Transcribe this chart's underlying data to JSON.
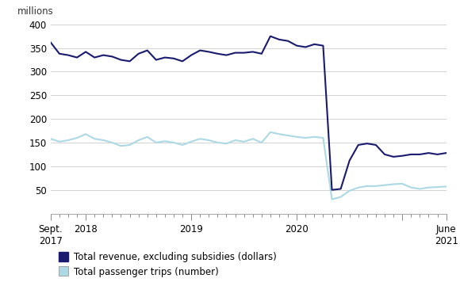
{
  "ylabel_text": "millions",
  "series": {
    "revenue": {
      "label": "Total revenue, excluding subsidies (dollars)",
      "color": "#1a1a6e",
      "linewidth": 1.5,
      "values": [
        362,
        338,
        335,
        330,
        342,
        330,
        335,
        332,
        325,
        322,
        338,
        345,
        325,
        330,
        328,
        322,
        335,
        345,
        342,
        338,
        335,
        340,
        340,
        342,
        338,
        375,
        368,
        365,
        355,
        352,
        358,
        355,
        50,
        52,
        112,
        145,
        148,
        145,
        125,
        120,
        122,
        125,
        125,
        128,
        125,
        128
      ]
    },
    "trips": {
      "label": "Total passenger trips (number)",
      "color": "#add8e6",
      "linewidth": 1.5,
      "values": [
        158,
        152,
        155,
        160,
        168,
        158,
        155,
        150,
        143,
        145,
        155,
        162,
        150,
        153,
        150,
        145,
        152,
        158,
        155,
        150,
        148,
        155,
        152,
        158,
        150,
        172,
        168,
        165,
        162,
        160,
        162,
        160,
        30,
        35,
        48,
        55,
        58,
        58,
        60,
        62,
        63,
        55,
        52,
        55,
        56,
        57
      ]
    }
  },
  "x_major_ticks": [
    0,
    4,
    16,
    28,
    40,
    45
  ],
  "x_major_labels": [
    "Sept.\n2017",
    "2018",
    "2019",
    "2020",
    "",
    "June\n2021"
  ],
  "ylim": [
    0,
    400
  ],
  "yticks": [
    0,
    50,
    100,
    150,
    200,
    250,
    300,
    350,
    400
  ],
  "num_points": 46,
  "bg_color": "#ffffff",
  "spine_color": "#aaaaaa",
  "grid_color": "#cccccc",
  "legend_box_colors": [
    "#1a1a6e",
    "#add8e6"
  ],
  "tick_label_fontsize": 8.5
}
